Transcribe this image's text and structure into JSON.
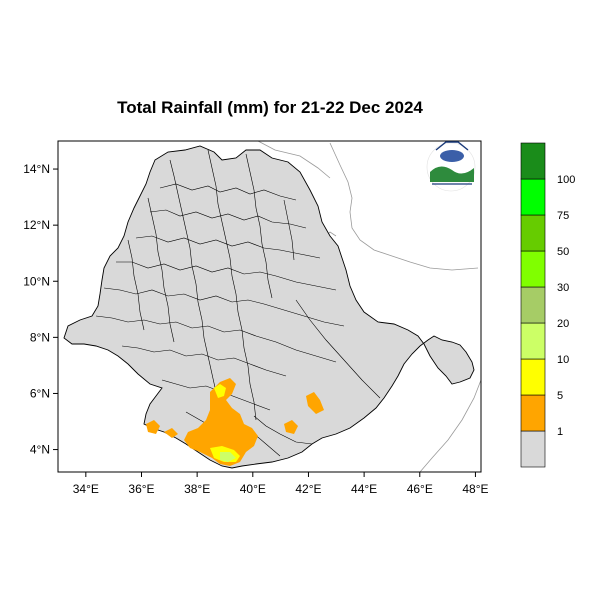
{
  "title": "Total Rainfall (mm) for 21-22 Dec 2024",
  "x_ticks": [
    {
      "lon": 34,
      "label": "34°E"
    },
    {
      "lon": 36,
      "label": "36°E"
    },
    {
      "lon": 38,
      "label": "38°E"
    },
    {
      "lon": 40,
      "label": "40°E"
    },
    {
      "lon": 42,
      "label": "42°E"
    },
    {
      "lon": 44,
      "label": "44°E"
    },
    {
      "lon": 46,
      "label": "46°E"
    },
    {
      "lon": 48,
      "label": "48°E"
    }
  ],
  "y_ticks": [
    {
      "lat": 14,
      "label": "14°N"
    },
    {
      "lat": 12,
      "label": "12°N"
    },
    {
      "lat": 10,
      "label": "10°N"
    },
    {
      "lat": 8,
      "label": "8°N"
    },
    {
      "lat": 6,
      "label": "6°N"
    },
    {
      "lat": 4,
      "label": "4°N"
    }
  ],
  "legend": [
    {
      "label": "1",
      "color": "#d9d9d9"
    },
    {
      "label": "5",
      "color": "#ffa500"
    },
    {
      "label": "10",
      "color": "#ffff00"
    },
    {
      "label": "20",
      "color": "#ccff66"
    },
    {
      "label": "30",
      "color": "#a6cc66"
    },
    {
      "label": "50",
      "color": "#80ff00"
    },
    {
      "label": "75",
      "color": "#66cc00"
    },
    {
      "label": "100",
      "color": "#00ff00"
    },
    {
      "label": "",
      "color": "#1a8c1a"
    }
  ],
  "logo": {
    "name": "agency-logo"
  },
  "colors": {
    "land": "#d9d9d9",
    "border": "#000000",
    "neighbor_border": "#999999"
  }
}
